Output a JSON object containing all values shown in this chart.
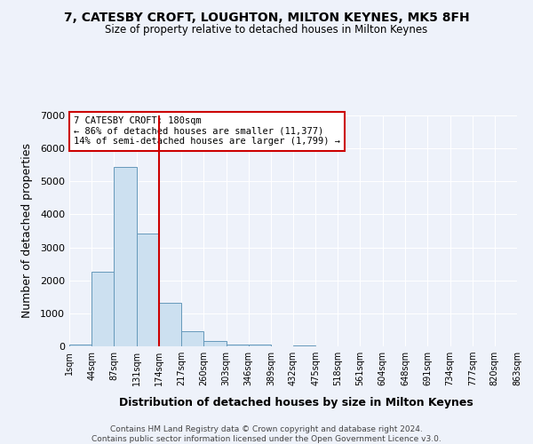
{
  "title": "7, CATESBY CROFT, LOUGHTON, MILTON KEYNES, MK5 8FH",
  "subtitle": "Size of property relative to detached houses in Milton Keynes",
  "xlabel": "Distribution of detached houses by size in Milton Keynes",
  "ylabel": "Number of detached properties",
  "bar_color": "#cce0f0",
  "bar_edge_color": "#6699bb",
  "background_color": "#eef2fa",
  "grid_color": "#ffffff",
  "annotation_box_color": "#cc0000",
  "vline_color": "#cc0000",
  "vline_x": 174,
  "annotation_title": "7 CATESBY CROFT: 180sqm",
  "annotation_line1": "← 86% of detached houses are smaller (11,377)",
  "annotation_line2": "14% of semi-detached houses are larger (1,799) →",
  "bin_edges": [
    1,
    44,
    87,
    131,
    174,
    217,
    260,
    303,
    346,
    389,
    432,
    475,
    518,
    561,
    604,
    648,
    691,
    734,
    777,
    820,
    863
  ],
  "bin_heights": [
    55,
    2270,
    5450,
    3420,
    1320,
    460,
    175,
    65,
    55,
    0,
    40,
    0,
    0,
    0,
    0,
    0,
    0,
    0,
    0,
    0
  ],
  "tick_labels": [
    "1sqm",
    "44sqm",
    "87sqm",
    "131sqm",
    "174sqm",
    "217sqm",
    "260sqm",
    "303sqm",
    "346sqm",
    "389sqm",
    "432sqm",
    "475sqm",
    "518sqm",
    "561sqm",
    "604sqm",
    "648sqm",
    "691sqm",
    "734sqm",
    "777sqm",
    "820sqm",
    "863sqm"
  ],
  "ylim": [
    0,
    7000
  ],
  "yticks": [
    0,
    1000,
    2000,
    3000,
    4000,
    5000,
    6000,
    7000
  ],
  "footer_line1": "Contains HM Land Registry data © Crown copyright and database right 2024.",
  "footer_line2": "Contains public sector information licensed under the Open Government Licence v3.0."
}
